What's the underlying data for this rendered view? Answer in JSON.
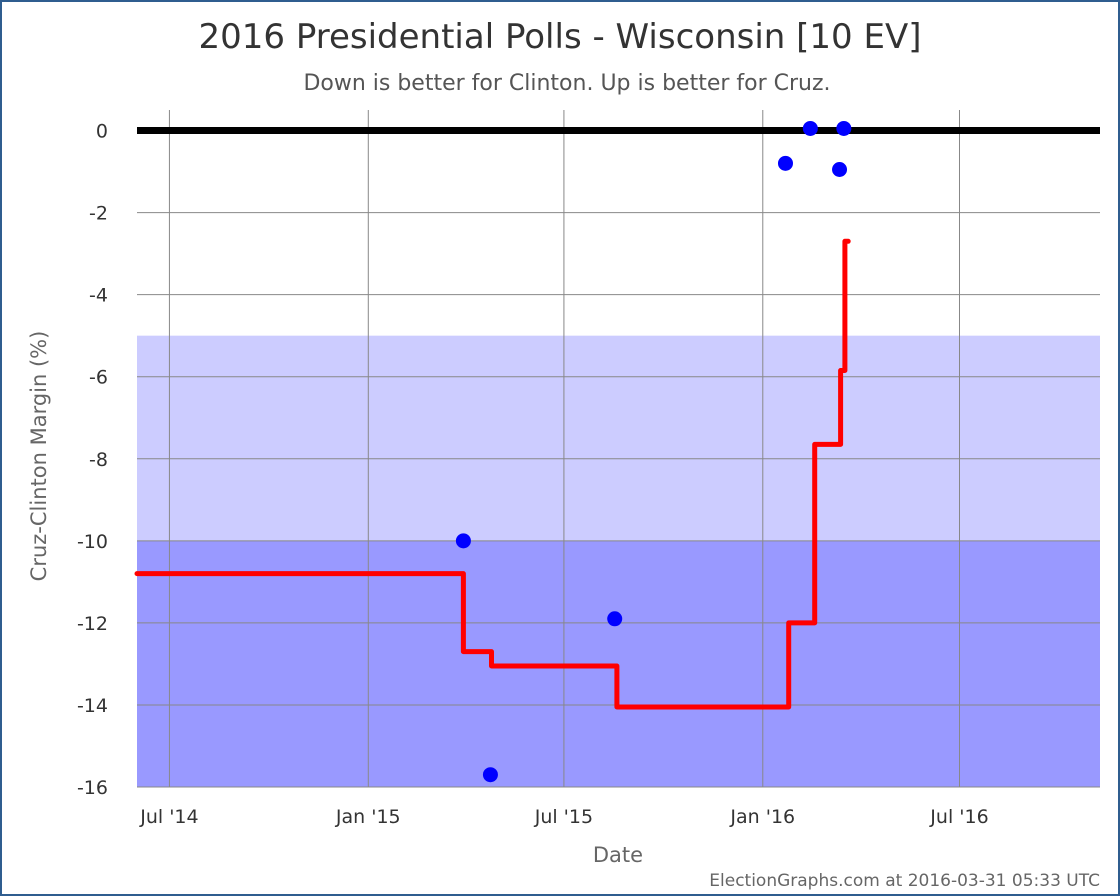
{
  "chart_data": {
    "type": "line",
    "title": "2016 Presidential Polls - Wisconsin [10 EV]",
    "subtitle": "Down is better for Clinton. Up is better for Cruz.",
    "xlabel": "Date",
    "ylabel": "Cruz-Clinton Margin (%)",
    "xlim": [
      "2014-06-01",
      "2016-11-08"
    ],
    "ylim": [
      -16,
      0.5
    ],
    "y_ticks": [
      0,
      -2,
      -4,
      -6,
      -8,
      -10,
      -12,
      -14,
      -16
    ],
    "y_tick_labels": [
      "0",
      "-2",
      "-4",
      "-6",
      "-8",
      "-10",
      "-12",
      "-14",
      "-16"
    ],
    "x_ticks": [
      "2014-07-01",
      "2015-01-01",
      "2015-07-01",
      "2016-01-01",
      "2016-07-01"
    ],
    "x_tick_labels": [
      "Jul '14",
      "Jan '15",
      "Jul '15",
      "Jan '16",
      "Jul '16"
    ],
    "grid": true,
    "bands": [
      {
        "from": -10,
        "to": -5,
        "color": "#ccccff"
      },
      {
        "from": -16,
        "to": -10,
        "color": "#9999ff"
      }
    ],
    "zero_line": {
      "value": 0,
      "color": "#000000"
    },
    "series": [
      {
        "kind": "step-line",
        "color": "#ff0000",
        "points": [
          {
            "x": "2014-06-01",
            "y": -10.8
          },
          {
            "x": "2015-03-30",
            "y": -10.8
          },
          {
            "x": "2015-03-30",
            "y": -12.7
          },
          {
            "x": "2015-04-25",
            "y": -12.7
          },
          {
            "x": "2015-04-25",
            "y": -13.05
          },
          {
            "x": "2015-08-19",
            "y": -13.05
          },
          {
            "x": "2015-08-19",
            "y": -14.05
          },
          {
            "x": "2016-01-25",
            "y": -14.05
          },
          {
            "x": "2016-01-25",
            "y": -12.0
          },
          {
            "x": "2016-02-18",
            "y": -12.0
          },
          {
            "x": "2016-02-18",
            "y": -7.65
          },
          {
            "x": "2016-03-13",
            "y": -7.65
          },
          {
            "x": "2016-03-13",
            "y": -5.85
          },
          {
            "x": "2016-03-17",
            "y": -5.85
          },
          {
            "x": "2016-03-17",
            "y": -2.7
          },
          {
            "x": "2016-03-20",
            "y": -2.7
          }
        ]
      },
      {
        "kind": "scatter",
        "color": "#0000ff",
        "points": [
          {
            "x": "2015-03-30",
            "y": -10.0
          },
          {
            "x": "2015-04-24",
            "y": -15.7
          },
          {
            "x": "2015-08-17",
            "y": -11.9
          },
          {
            "x": "2016-01-22",
            "y": -0.8
          },
          {
            "x": "2016-02-14",
            "y": 0.05
          },
          {
            "x": "2016-03-12",
            "y": -0.95
          },
          {
            "x": "2016-03-16",
            "y": 0.05
          }
        ]
      }
    ]
  },
  "footer": {
    "credit": "ElectionGraphs.com at 2016-03-31 05:33 UTC"
  }
}
